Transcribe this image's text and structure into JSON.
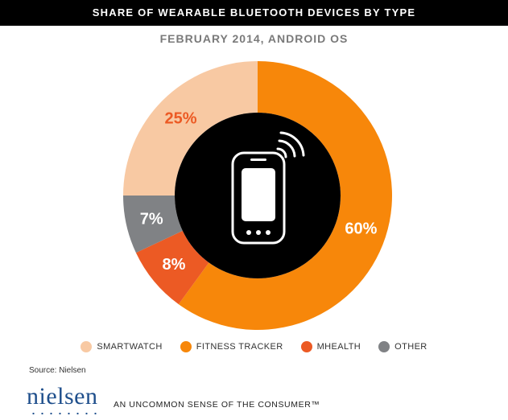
{
  "header": {
    "title": "SHARE OF WEARABLE BLUETOOTH DEVICES BY TYPE",
    "subtitle": "FEBRUARY 2014, ANDROID OS"
  },
  "chart_data": {
    "type": "pie",
    "style": "donut",
    "title": "SHARE OF WEARABLE BLUETOOTH DEVICES BY TYPE",
    "subtitle": "FEBRUARY 2014, ANDROID OS",
    "categories": [
      "SMARTWATCH",
      "FITNESS TRACKER",
      "MHEALTH",
      "OTHER"
    ],
    "values": [
      25,
      60,
      8,
      7
    ],
    "labels": [
      "25%",
      "60%",
      "8%",
      "7%"
    ],
    "colors": [
      "#f8c9a3",
      "#f7870a",
      "#ec5a24",
      "#808285"
    ],
    "label_colors": [
      "#ec5a24",
      "#ffffff",
      "#ffffff",
      "#ffffff"
    ],
    "center_icon": "smartphone-signal-icon",
    "legend_position": "bottom"
  },
  "legend": {
    "items": [
      {
        "label": "SMARTWATCH",
        "color": "#f8c9a3"
      },
      {
        "label": "FITNESS TRACKER",
        "color": "#f7870a"
      },
      {
        "label": "MHEALTH",
        "color": "#ec5a24"
      },
      {
        "label": "OTHER",
        "color": "#808285"
      }
    ]
  },
  "footer": {
    "source": "Source: Nielsen",
    "logo_text": "nielsen",
    "tagline": "AN UNCOMMON SENSE OF THE CONSUMER™"
  }
}
